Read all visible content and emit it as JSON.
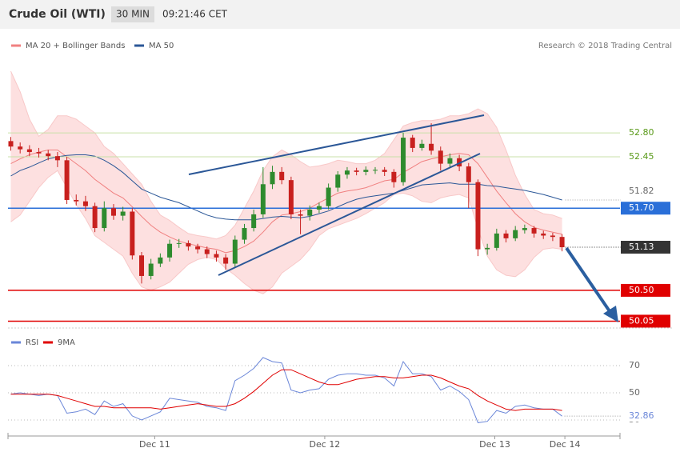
{
  "header": {
    "title": "Crude Oil (WTI)",
    "interval": "30 MIN",
    "time": "09:21:46 CET"
  },
  "chart_data": [
    {
      "type": "candlestick",
      "source": "Research © 2018 Trading Central",
      "xlim": [
        -0.3,
        65.2
      ],
      "ylim": [
        49.95,
        54.32
      ],
      "up_color": "#2e8b2e",
      "down_color": "#c8201e",
      "open": [
        52.68,
        52.6,
        52.56,
        52.52,
        52.5,
        52.46,
        52.4,
        51.82,
        51.8,
        51.73,
        51.41,
        51.7,
        51.59,
        51.65,
        51.01,
        50.71,
        50.89,
        50.98,
        51.18,
        51.19,
        51.14,
        51.1,
        51.03,
        50.98,
        50.89,
        51.24,
        51.41,
        51.61,
        52.05,
        52.23,
        52.11,
        51.61,
        51.59,
        51.68,
        51.73,
        52.0,
        52.19,
        52.25,
        52.23,
        52.26,
        52.26,
        52.23,
        52.08,
        52.73,
        52.58,
        52.64,
        52.54,
        52.35,
        52.43,
        52.31,
        52.08,
        51.1,
        51.12,
        51.33,
        51.26,
        51.38,
        51.41,
        51.33,
        51.3,
        51.28
      ],
      "high": [
        52.74,
        52.66,
        52.62,
        52.58,
        52.55,
        52.52,
        52.45,
        51.9,
        51.88,
        51.78,
        51.8,
        51.76,
        51.72,
        51.7,
        51.06,
        50.96,
        51.04,
        51.24,
        51.25,
        51.23,
        51.18,
        51.14,
        51.08,
        51.03,
        51.3,
        51.47,
        51.68,
        52.3,
        52.32,
        52.3,
        52.16,
        51.68,
        51.74,
        51.78,
        52.06,
        52.24,
        52.3,
        52.29,
        52.31,
        52.3,
        52.3,
        52.27,
        52.8,
        52.77,
        52.7,
        52.94,
        52.6,
        52.5,
        52.48,
        52.36,
        52.12,
        51.18,
        51.4,
        51.38,
        51.44,
        51.46,
        51.44,
        51.37,
        51.34,
        51.32
      ],
      "low": [
        52.54,
        52.5,
        52.46,
        52.44,
        52.4,
        52.3,
        51.76,
        51.74,
        51.66,
        51.35,
        51.36,
        51.53,
        51.52,
        50.95,
        50.6,
        50.66,
        50.84,
        50.92,
        51.12,
        51.08,
        51.04,
        50.97,
        50.92,
        50.8,
        50.84,
        51.18,
        51.36,
        51.56,
        51.98,
        52.05,
        51.54,
        51.32,
        51.52,
        51.63,
        51.68,
        51.94,
        52.13,
        52.18,
        52.18,
        52.2,
        52.17,
        52.0,
        52.03,
        52.52,
        52.54,
        52.48,
        52.25,
        52.3,
        52.24,
        51.7,
        51.0,
        51.02,
        51.08,
        51.2,
        51.22,
        51.33,
        51.27,
        51.25,
        51.22,
        51.07
      ],
      "close": [
        52.6,
        52.56,
        52.52,
        52.5,
        52.46,
        52.4,
        51.82,
        51.8,
        51.73,
        51.41,
        51.7,
        51.59,
        51.65,
        51.01,
        50.71,
        50.89,
        50.98,
        51.18,
        51.19,
        51.14,
        51.1,
        51.03,
        50.98,
        50.89,
        51.24,
        51.41,
        51.61,
        52.05,
        52.23,
        52.11,
        51.61,
        51.59,
        51.68,
        51.73,
        52.0,
        52.19,
        52.25,
        52.23,
        52.26,
        52.26,
        52.23,
        52.08,
        52.73,
        52.58,
        52.64,
        52.54,
        52.35,
        52.43,
        52.31,
        52.08,
        51.1,
        51.12,
        51.33,
        51.26,
        51.38,
        51.41,
        51.33,
        51.3,
        51.28,
        51.13
      ],
      "bollinger": {
        "name": "MA 20 + Bollinger Bands",
        "color": "#f08080",
        "fill": "#fde0e0",
        "ma": [
          52.35,
          52.42,
          52.48,
          52.52,
          52.55,
          52.55,
          52.45,
          52.35,
          52.25,
          52.12,
          52.02,
          51.92,
          51.85,
          51.72,
          51.58,
          51.45,
          51.35,
          51.28,
          51.22,
          51.18,
          51.15,
          51.12,
          51.1,
          51.05,
          51.08,
          51.14,
          51.22,
          51.35,
          51.5,
          51.6,
          51.62,
          51.65,
          51.7,
          51.78,
          51.85,
          51.92,
          51.95,
          51.97,
          52.0,
          52.05,
          52.1,
          52.12,
          52.22,
          52.3,
          52.38,
          52.42,
          52.45,
          52.48,
          52.5,
          52.48,
          52.35,
          52.15,
          51.95,
          51.78,
          51.62,
          51.5,
          51.42,
          51.38,
          51.35,
          51.32
        ],
        "upper": [
          53.7,
          53.4,
          53.0,
          52.75,
          52.85,
          53.05,
          53.05,
          53.0,
          52.9,
          52.8,
          52.6,
          52.5,
          52.35,
          52.2,
          52.05,
          51.8,
          51.6,
          51.52,
          51.42,
          51.33,
          51.3,
          51.28,
          51.25,
          51.3,
          51.45,
          51.7,
          51.95,
          52.25,
          52.45,
          52.55,
          52.48,
          52.38,
          52.3,
          52.32,
          52.35,
          52.4,
          52.38,
          52.35,
          52.35,
          52.4,
          52.5,
          52.7,
          52.9,
          52.95,
          52.98,
          52.98,
          53.0,
          53.05,
          53.05,
          53.08,
          53.15,
          53.08,
          52.88,
          52.55,
          52.18,
          51.9,
          51.68,
          51.62,
          51.6,
          51.55
        ],
        "lower": [
          51.5,
          51.6,
          51.8,
          52.0,
          52.15,
          52.25,
          52.0,
          51.75,
          51.55,
          51.3,
          51.2,
          51.1,
          51.0,
          50.75,
          50.55,
          50.5,
          50.55,
          50.62,
          50.75,
          50.88,
          50.95,
          50.98,
          50.95,
          50.82,
          50.72,
          50.6,
          50.5,
          50.45,
          50.55,
          50.75,
          50.85,
          50.95,
          51.1,
          51.3,
          51.4,
          51.45,
          51.5,
          51.55,
          51.62,
          51.7,
          51.78,
          51.9,
          51.92,
          51.88,
          51.8,
          51.78,
          51.85,
          51.88,
          51.9,
          51.85,
          51.4,
          51.0,
          50.8,
          50.72,
          50.7,
          50.8,
          50.98,
          51.1,
          51.12,
          51.1
        ]
      },
      "ma50": {
        "name": "MA 50",
        "color": "#2b5797",
        "values": [
          52.17,
          52.25,
          52.3,
          52.36,
          52.42,
          52.45,
          52.47,
          52.48,
          52.48,
          52.46,
          52.4,
          52.32,
          52.22,
          52.1,
          51.98,
          51.92,
          51.86,
          51.82,
          51.78,
          51.72,
          51.66,
          51.6,
          51.56,
          51.54,
          51.53,
          51.53,
          51.53,
          51.55,
          51.57,
          51.58,
          51.57,
          51.56,
          51.58,
          51.62,
          51.66,
          51.72,
          51.78,
          51.83,
          51.86,
          51.88,
          51.9,
          51.92,
          51.96,
          52.0,
          52.04,
          52.05,
          52.06,
          52.07,
          52.05,
          52.05,
          52.05,
          52.03,
          52.02,
          52.0,
          51.98,
          51.96,
          51.93,
          51.9,
          51.86,
          51.82
        ]
      },
      "levels": [
        {
          "value": {
            "value": 52.8,
            "label": "52.80"
          },
          "color": "#5a9a1a",
          "line_color": "#c8e0a8",
          "boxed": false
        },
        {
          "value": 52.45,
          "color": "#5a9a1a",
          "line_color": "#c8e0a8",
          "boxed": false
        },
        {
          "value": {
            "value": 51.7,
            "label": "51.70"
          },
          "color": "#2a6fd8",
          "line_color": "#2a6fd8",
          "boxed": true
        },
        {
          "value": {
            "value": 50.5,
            "label": "50.50"
          },
          "color": "#e00000",
          "line_color": "#e00000",
          "boxed": true
        },
        {
          "value": 50.05,
          "color": "#e00000",
          "line_color": "#e00000",
          "boxed": true
        }
      ]
    },
    {
      "type": "line",
      "xlim": [
        -0.3,
        65.2
      ],
      "ylim": [
        21.2,
        91.8
      ],
      "yticks": [
        30,
        50,
        70
      ],
      "xticks": [
        {
          "value": 15.4,
          "label": "Dec 11"
        },
        {
          "value": 33.6,
          "label": "Dec 12"
        },
        {
          "value": 51.8,
          "label": "Dec 13"
        },
        {
          "value": 59.3,
          "label": "Dec 14"
        }
      ],
      "series": [
        {
          "name": "RSI",
          "color": "#6a86d8",
          "values": [
            49,
            50,
            49,
            48,
            49,
            48,
            35,
            36,
            38,
            34,
            44,
            40,
            42,
            33,
            30,
            33,
            36,
            46,
            45,
            44,
            43,
            40,
            39,
            37,
            59,
            63,
            68,
            76,
            73,
            72,
            52,
            50,
            52,
            53,
            60,
            63,
            64,
            64,
            63,
            63,
            61,
            55,
            73,
            64,
            64,
            62,
            52,
            55,
            51,
            45,
            28,
            29,
            37,
            35,
            40,
            41,
            39,
            38,
            38,
            32.86
          ]
        },
        {
          "name": "9MA",
          "color": "#e00000",
          "values": [
            49,
            49,
            49,
            49,
            49,
            48,
            46,
            44,
            42,
            40,
            40,
            39,
            39,
            39,
            39,
            39,
            38,
            39,
            40,
            41,
            42,
            41,
            40,
            40,
            42,
            46,
            51,
            57,
            63,
            67,
            67,
            64,
            61,
            58,
            56,
            56,
            58,
            60,
            61,
            62,
            62,
            61,
            61,
            62,
            63,
            63,
            61,
            58,
            55,
            53,
            48,
            44,
            41,
            38,
            37,
            38,
            38,
            38,
            38,
            37
          ]
        }
      ]
    }
  ]
}
